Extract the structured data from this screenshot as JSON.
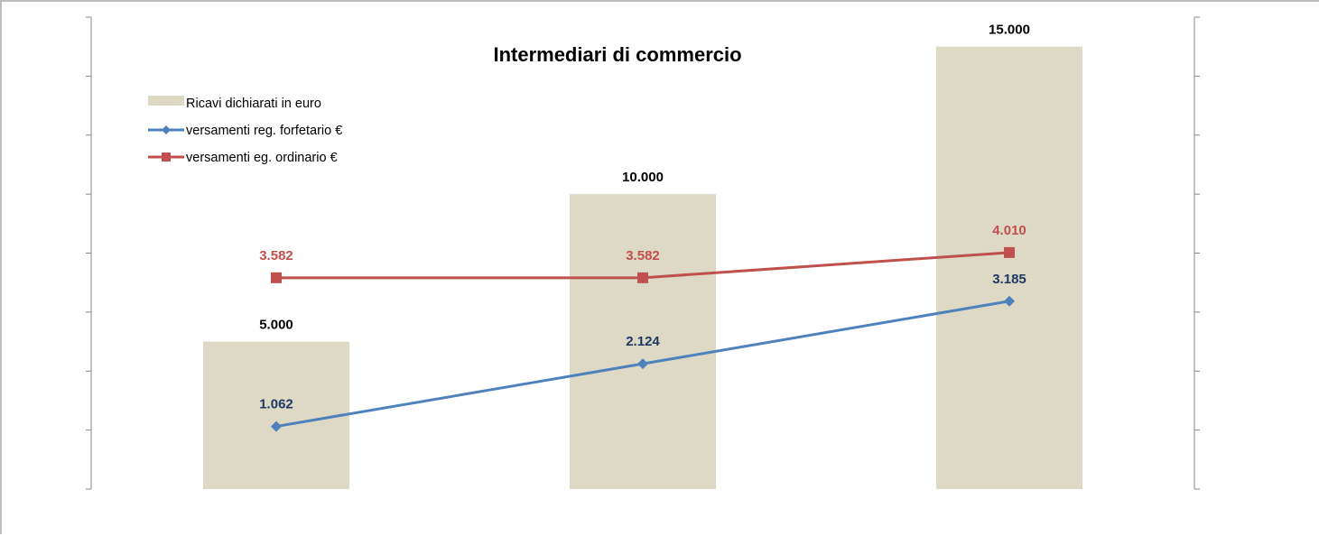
{
  "chart_data": {
    "type": "bar",
    "title": "Intermediari di commercio",
    "xlabel": "",
    "ylabel": "",
    "categories": [
      "",
      "",
      ""
    ],
    "ylim": [
      0,
      16000
    ],
    "y2lim": [
      0,
      8000
    ],
    "grid": false,
    "legend_position": "top-left",
    "series": [
      {
        "name": "Ricavi dichiarati in euro",
        "kind": "bar",
        "axis": "primary",
        "color": "#ddd9c4",
        "values": [
          5000,
          10000,
          15000
        ],
        "labels": [
          "5.000",
          "10.000",
          "15.000"
        ],
        "label_color": "#000000"
      },
      {
        "name": "versamenti  reg. forfetario €",
        "kind": "line",
        "axis": "secondary",
        "marker": "diamond",
        "color": "#4f81bd",
        "values": [
          1062,
          2124,
          3185
        ],
        "labels": [
          "1.062",
          "2.124",
          "3.185"
        ],
        "label_color": "#1f3864"
      },
      {
        "name": "versamenti eg. ordinario €",
        "kind": "line",
        "axis": "secondary",
        "marker": "square",
        "color": "#c0504d",
        "values": [
          3582,
          3582,
          4010
        ],
        "labels": [
          "3.582",
          "3.582",
          "4.010"
        ],
        "label_color": "#c0504d"
      }
    ]
  }
}
